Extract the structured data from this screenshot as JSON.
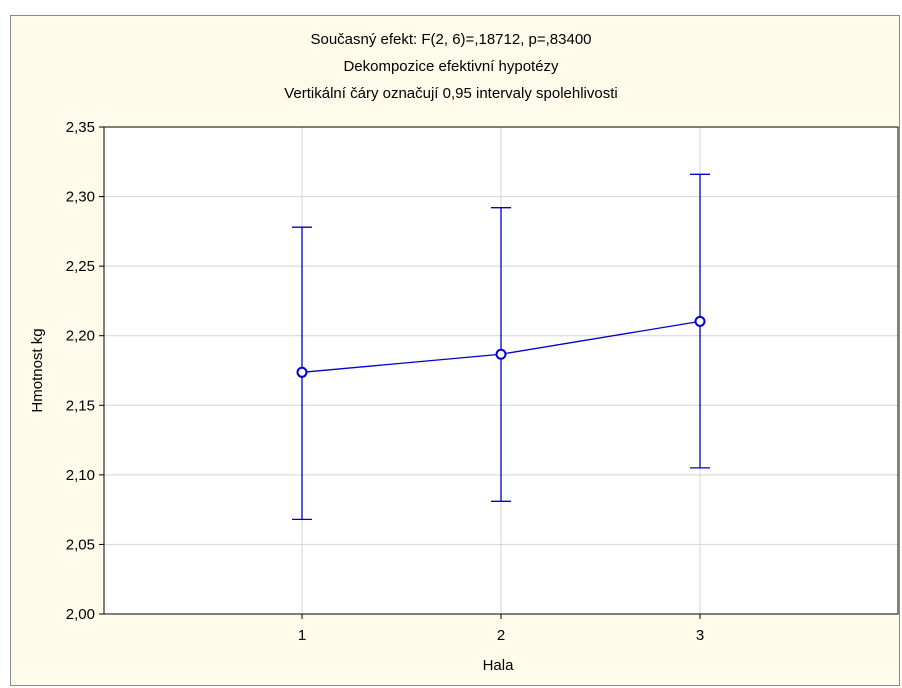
{
  "chart_data": {
    "type": "line",
    "title_lines": [
      "Současný efekt: F(2, 6)=,18712, p=,83400",
      "Dekompozice efektivní hypotézy",
      "Vertikální čáry označují 0,95 intervaly spolehlivosti"
    ],
    "xlabel": "Hala",
    "ylabel": "Hmotnost kg",
    "categories": [
      "1",
      "2",
      "3"
    ],
    "series": [
      {
        "values": [
          2.1737,
          2.1867,
          2.2103
        ],
        "ci_lower": [
          2.068,
          2.081,
          2.105
        ],
        "ci_upper": [
          2.278,
          2.292,
          2.316
        ]
      }
    ],
    "ylim": [
      2.0,
      2.35
    ],
    "yticks": [
      2.0,
      2.05,
      2.1,
      2.15,
      2.2,
      2.25,
      2.3,
      2.35
    ],
    "ytick_labels": [
      "2,00",
      "2,05",
      "2,10",
      "2,15",
      "2,20",
      "2,25",
      "2,30",
      "2,35"
    ],
    "grid": true,
    "line_color": "#0000cc",
    "grid_color": "#d4d4d4",
    "background_color": "#fffbeb"
  }
}
